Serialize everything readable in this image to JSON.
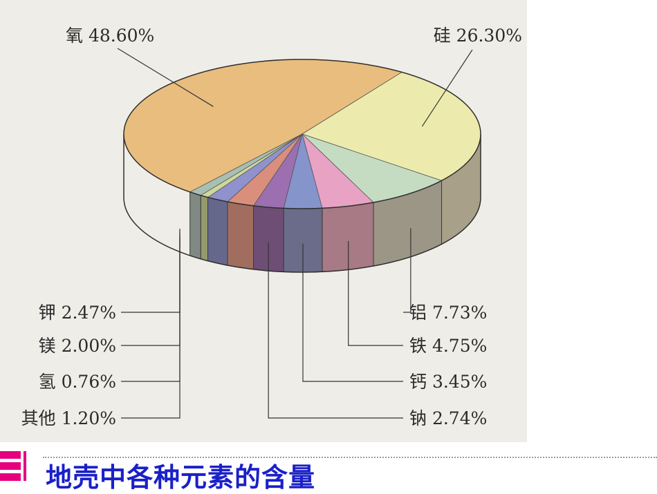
{
  "chart_data": {
    "type": "pie",
    "title": "地壳中各种元素的含量",
    "slices": [
      {
        "label": "氧 48.60%",
        "name": "氧",
        "value": 48.6,
        "top": "#e9bd7e",
        "side": "#b98f5c"
      },
      {
        "label": "硅 26.30%",
        "name": "硅",
        "value": 26.3,
        "top": "#ecebad",
        "side": "#a9a08a"
      },
      {
        "label": "铝 7.73%",
        "name": "铝",
        "value": 7.73,
        "top": "#c5dcc2",
        "side": "#9c9686"
      },
      {
        "label": "铁 4.75%",
        "name": "铁",
        "value": 4.75,
        "top": "#e7a2c4",
        "side": "#a77a85"
      },
      {
        "label": "钙 3.45%",
        "name": "钙",
        "value": 3.45,
        "top": "#8694cc",
        "side": "#6a6c8a"
      },
      {
        "label": "钠 2.74%",
        "name": "钠",
        "value": 2.74,
        "top": "#9b6fb0",
        "side": "#6e4e75"
      },
      {
        "label": "钾 2.47%",
        "name": "钾",
        "value": 2.47,
        "top": "#d98f7c",
        "side": "#a06d5f"
      },
      {
        "label": "镁 2.00%",
        "name": "镁",
        "value": 2.0,
        "top": "#8f92cc",
        "side": "#65688c"
      },
      {
        "label": "氢 0.76%",
        "name": "氢",
        "value": 0.76,
        "top": "#cfd79a",
        "side": "#949a6c"
      },
      {
        "label": "其他 1.20%",
        "name": "其他",
        "value": 1.2,
        "top": "#a8bfb4",
        "side": "#808a82"
      }
    ]
  },
  "caption": {
    "title": "地壳中各种元素的含量"
  }
}
